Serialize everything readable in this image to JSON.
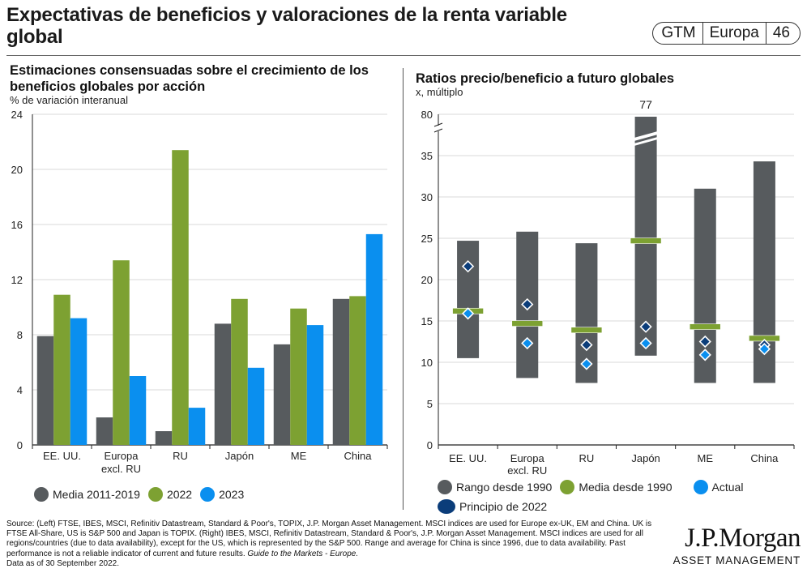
{
  "header": {
    "title": "Expectativas de beneficios y valoraciones de la renta variable global",
    "badge": [
      "GTM",
      "Europa",
      "46"
    ]
  },
  "colors": {
    "gray": "#575b5e",
    "green": "#7da132",
    "blue": "#0a8fef",
    "navy": "#0b3d7a",
    "grid": "#d9d9d9",
    "axis": "#222222"
  },
  "chart_data": [
    {
      "type": "bar",
      "title": "Estimaciones consensuadas sobre el crecimiento de los beneficios globales por acción",
      "subtitle": "% de variación interanual",
      "xlabel": "",
      "ylabel": "% de variación interanual",
      "ylim": [
        0,
        24
      ],
      "yticks": [
        0,
        4,
        8,
        12,
        16,
        20,
        24
      ],
      "grid": true,
      "legend_position": "bottom",
      "categories": [
        "EE. UU.",
        "Europa excl. RU",
        "RU",
        "Japón",
        "ME",
        "China"
      ],
      "category_lines": [
        [
          "EE. UU."
        ],
        [
          "Europa",
          "excl. RU"
        ],
        [
          "RU"
        ],
        [
          "Japón"
        ],
        [
          "ME"
        ],
        [
          "China"
        ]
      ],
      "series": [
        {
          "name": "Media 2011-2019",
          "color": "#575b5e",
          "values": [
            7.9,
            2.0,
            1.0,
            8.8,
            7.3,
            10.6
          ]
        },
        {
          "name": "2022",
          "color": "#7da132",
          "values": [
            10.9,
            13.4,
            21.4,
            10.6,
            9.9,
            10.8
          ]
        },
        {
          "name": "2023",
          "color": "#0a8fef",
          "values": [
            9.2,
            5.0,
            2.7,
            5.6,
            8.7,
            15.3
          ]
        }
      ]
    },
    {
      "type": "range",
      "title": "Ratios precio/beneficio a futuro globales",
      "subtitle": "x, múltiplo",
      "xlabel": "",
      "ylabel": "x, múltiplo",
      "ylim": [
        0,
        35
      ],
      "ylim_broken_top": 80,
      "yticks": [
        0,
        5,
        10,
        15,
        20,
        25,
        30,
        35,
        80
      ],
      "axis_break": true,
      "grid": true,
      "legend_position": "bottom",
      "categories": [
        "EE. UU.",
        "Europa excl. RU",
        "RU",
        "Japón",
        "ME",
        "China"
      ],
      "category_lines": [
        [
          "EE. UU."
        ],
        [
          "Europa",
          "excl. RU"
        ],
        [
          "RU"
        ],
        [
          "Japón"
        ],
        [
          "ME"
        ],
        [
          "China"
        ]
      ],
      "annotations": [
        {
          "category": "Japón",
          "text": "77"
        }
      ],
      "series": [
        {
          "name": "Rango desde 1990",
          "color": "#575b5e",
          "kind": "range",
          "low": [
            10.5,
            8.1,
            7.5,
            10.8,
            7.5,
            7.5
          ],
          "high": [
            24.7,
            25.8,
            24.4,
            77,
            31.0,
            34.3
          ]
        },
        {
          "name": "Media desde 1990",
          "color": "#7da132",
          "kind": "mean-bar",
          "values": [
            16.2,
            14.7,
            13.9,
            24.7,
            14.3,
            12.9
          ]
        },
        {
          "name": "Actual",
          "color": "#0a8fef",
          "kind": "diamond",
          "values": [
            15.9,
            12.3,
            9.8,
            12.3,
            10.9,
            11.6
          ]
        },
        {
          "name": "Principio de 2022",
          "color": "#0b3d7a",
          "kind": "diamond",
          "values": [
            21.6,
            17.0,
            12.1,
            14.3,
            12.5,
            12.1
          ]
        }
      ]
    }
  ],
  "footnote": {
    "text": "Source: (Left) FTSE, IBES, MSCI, Refinitiv Datastream, Standard & Poor's, TOPIX, J.P. Morgan Asset Management. MSCI indices are used for Europe ex-UK, EM and China. UK is FTSE All-Share, US is S&P 500 and Japan is TOPIX. (Right) IBES, MSCI, Refinitiv Datastream, Standard & Poor's, J.P. Morgan Asset Management. MSCI indices are used for all regions/countries (due to data availability), except for the US, which is represented by the S&P 500. Range and average for China is since 1996, due to data availability. Past performance is not a reliable indicator of current and future results. ",
    "italic": "Guide to the Markets - Europe.",
    "date": "Data as of 30 September 2022."
  },
  "logo": {
    "main": "J.P.Morgan",
    "sub": "ASSET MANAGEMENT"
  }
}
